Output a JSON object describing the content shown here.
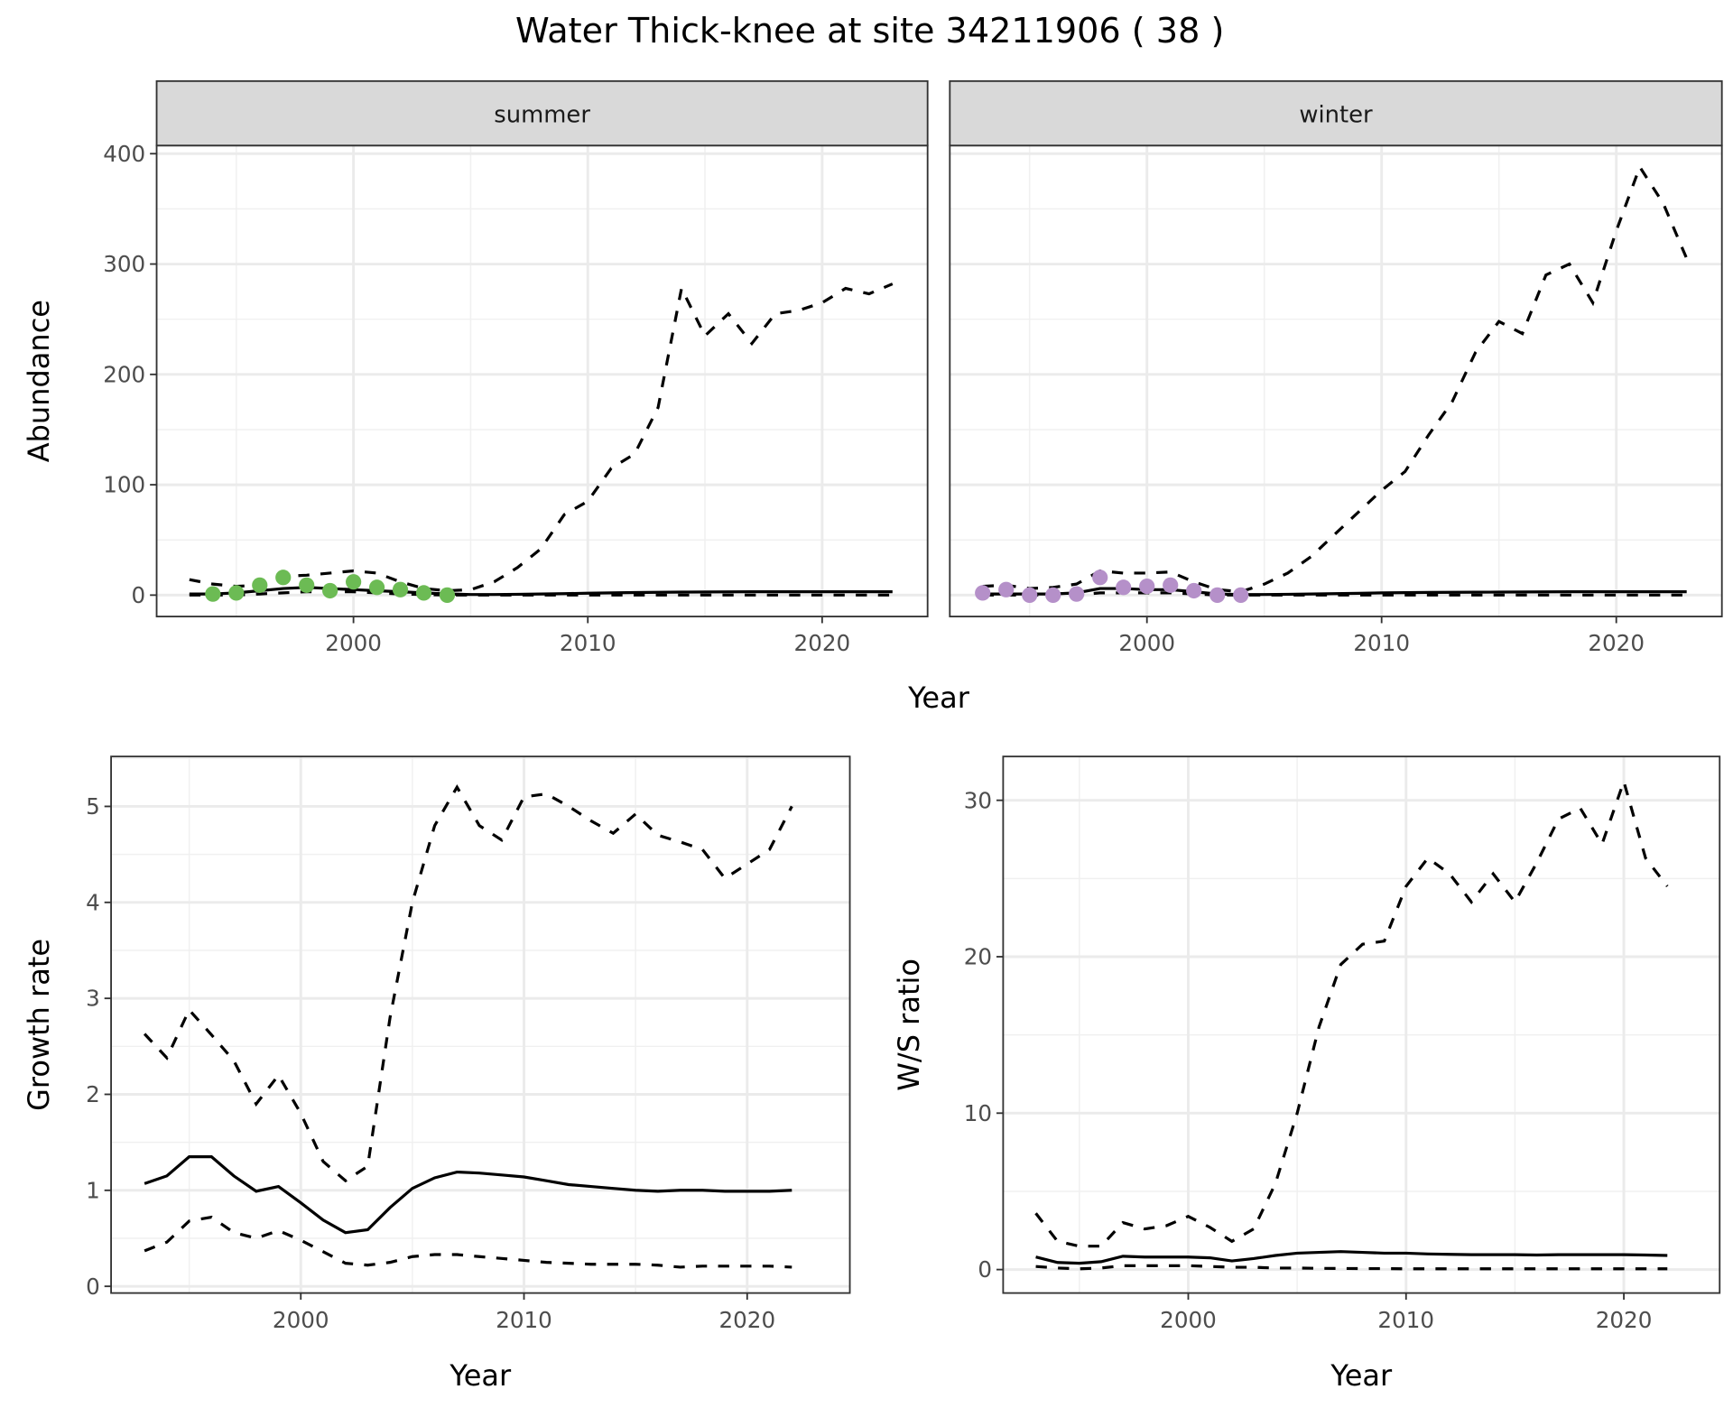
{
  "chart_data": {
    "title": "Water Thick-knee at site 34211906 ( 38 )",
    "colors": {
      "summer_points": "#6cbb54",
      "winter_points": "#b590c9",
      "lines": "#000000",
      "strip_bg": "#d9d9d9"
    },
    "panels": [
      {
        "id": "summer",
        "type": "line",
        "strip": "summer",
        "xlabel": "",
        "ylabel": "Abundance",
        "xlim": [
          1991.6,
          2024.5
        ],
        "ylim": [
          -19.4,
          407.4
        ],
        "xticks": [
          2000,
          2010,
          2020
        ],
        "yticks": [
          0,
          100,
          200,
          300,
          400
        ],
        "x": [
          1993,
          1994,
          1995,
          1996,
          1997,
          1998,
          1999,
          2000,
          2001,
          2002,
          2003,
          2004,
          2005,
          2006,
          2007,
          2008,
          2009,
          2010,
          2011,
          2012,
          2013,
          2014,
          2015,
          2016,
          2017,
          2018,
          2019,
          2020,
          2021,
          2022,
          2023
        ],
        "upper": [
          14,
          10,
          8,
          9,
          17,
          18,
          20,
          22,
          20,
          12,
          6,
          4,
          5,
          12,
          25,
          42,
          73,
          85,
          115,
          128,
          170,
          278,
          235,
          255,
          228,
          255,
          258,
          265,
          278,
          273,
          282
        ],
        "mean": [
          1,
          1,
          2,
          4,
          6,
          7,
          6,
          5,
          4,
          3,
          2,
          1,
          0.5,
          0.5,
          0.7,
          1,
          1.3,
          1.7,
          2,
          2.3,
          2.5,
          2.7,
          2.8,
          2.9,
          3,
          3,
          3,
          3,
          3,
          3,
          3
        ],
        "lower": [
          0,
          0,
          0,
          1,
          2,
          3,
          3,
          3,
          2,
          1,
          0.5,
          0,
          0,
          0,
          0,
          0,
          0,
          0,
          0,
          0,
          0,
          0,
          0,
          0,
          0,
          0,
          0,
          0,
          0,
          0,
          0
        ],
        "points": {
          "x": [
            1994,
            1995,
            1996,
            1997,
            1998,
            1999,
            2000,
            2001,
            2002,
            2003,
            2004
          ],
          "y": [
            1,
            2,
            9,
            16,
            9,
            4,
            12,
            7,
            5,
            2,
            0
          ]
        }
      },
      {
        "id": "winter",
        "type": "line",
        "strip": "winter",
        "xlabel": "",
        "ylabel": "",
        "xlim": [
          1991.6,
          2024.5
        ],
        "ylim": [
          -19.4,
          407.4
        ],
        "xticks": [
          2000,
          2010,
          2020
        ],
        "yticks": [],
        "x": [
          1993,
          1994,
          1995,
          1996,
          1997,
          1998,
          1999,
          2000,
          2001,
          2002,
          2003,
          2004,
          2005,
          2006,
          2007,
          2008,
          2009,
          2010,
          2011,
          2012,
          2013,
          2014,
          2015,
          2016,
          2017,
          2018,
          2019,
          2020,
          2021,
          2022,
          2023
        ],
        "upper": [
          8,
          9,
          6,
          7,
          10,
          22,
          20,
          20,
          21,
          12,
          5,
          3,
          10,
          20,
          35,
          55,
          75,
          95,
          112,
          145,
          175,
          220,
          248,
          237,
          290,
          300,
          265,
          330,
          388,
          355,
          305
        ],
        "mean": [
          1,
          1,
          1,
          1,
          2,
          6,
          6,
          5,
          5,
          3,
          1,
          0.5,
          0.5,
          0.7,
          1,
          1.3,
          1.6,
          2,
          2.2,
          2.4,
          2.5,
          2.6,
          2.7,
          2.8,
          2.9,
          3,
          3,
          3,
          3,
          3,
          3
        ],
        "lower": [
          0,
          0,
          0,
          0,
          0,
          2,
          2,
          2,
          2,
          1,
          0,
          0,
          0,
          0,
          0,
          0,
          0,
          0,
          0,
          0,
          0,
          0,
          0,
          0,
          0,
          0,
          0,
          0,
          0,
          0,
          0
        ],
        "points": {
          "x": [
            1993,
            1994,
            1995,
            1996,
            1997,
            1998,
            1999,
            2000,
            2001,
            2002,
            2003,
            2004
          ],
          "y": [
            2,
            5,
            0,
            0,
            1,
            16,
            7,
            8,
            9,
            4,
            0,
            0
          ]
        }
      },
      {
        "id": "growth",
        "type": "line",
        "xlabel": "Year",
        "ylabel": "Growth rate",
        "xlim": [
          1991.5,
          2024.6
        ],
        "ylim": [
          -0.07,
          5.52
        ],
        "xticks": [
          2000,
          2010,
          2020
        ],
        "yticks": [
          0,
          1,
          2,
          3,
          4,
          5
        ],
        "x": [
          1993,
          1994,
          1995,
          1996,
          1997,
          1998,
          1999,
          2000,
          2001,
          2002,
          2003,
          2004,
          2005,
          2006,
          2007,
          2008,
          2009,
          2010,
          2011,
          2012,
          2013,
          2014,
          2015,
          2016,
          2017,
          2018,
          2019,
          2020,
          2021,
          2022
        ],
        "upper": [
          2.63,
          2.38,
          2.88,
          2.62,
          2.35,
          1.9,
          2.2,
          1.8,
          1.3,
          1.1,
          1.25,
          2.8,
          4.0,
          4.8,
          5.2,
          4.8,
          4.65,
          5.1,
          5.13,
          5.0,
          4.85,
          4.72,
          4.92,
          4.7,
          4.63,
          4.55,
          4.25,
          4.4,
          4.55,
          5.0
        ],
        "mean": [
          1.07,
          1.15,
          1.35,
          1.35,
          1.15,
          0.99,
          1.04,
          0.87,
          0.69,
          0.56,
          0.59,
          0.82,
          1.02,
          1.13,
          1.19,
          1.18,
          1.16,
          1.14,
          1.1,
          1.06,
          1.04,
          1.02,
          1.0,
          0.99,
          1.0,
          1.0,
          0.99,
          0.99,
          0.99,
          1.0
        ],
        "lower": [
          0.37,
          0.46,
          0.68,
          0.72,
          0.56,
          0.5,
          0.58,
          0.48,
          0.36,
          0.24,
          0.22,
          0.25,
          0.31,
          0.33,
          0.33,
          0.31,
          0.29,
          0.27,
          0.25,
          0.24,
          0.23,
          0.23,
          0.23,
          0.22,
          0.2,
          0.21,
          0.21,
          0.21,
          0.21,
          0.2
        ]
      },
      {
        "id": "ws_ratio",
        "type": "line",
        "xlabel": "Year",
        "ylabel": "W/S ratio",
        "xlim": [
          1991.5,
          2024.4
        ],
        "ylim": [
          -1.5,
          32.8
        ],
        "xticks": [
          2000,
          2010,
          2020
        ],
        "yticks": [
          0,
          10,
          20,
          30
        ],
        "x": [
          1993,
          1994,
          1995,
          1996,
          1997,
          1998,
          1999,
          2000,
          2001,
          2002,
          2003,
          2004,
          2005,
          2006,
          2007,
          2008,
          2009,
          2010,
          2011,
          2012,
          2013,
          2014,
          2015,
          2016,
          2017,
          2018,
          2019,
          2020,
          2021,
          2022
        ],
        "upper": [
          3.6,
          1.8,
          1.5,
          1.5,
          3.0,
          2.6,
          2.8,
          3.4,
          2.7,
          1.8,
          2.6,
          5.5,
          10,
          15.5,
          19.5,
          20.8,
          21,
          24.5,
          26.3,
          25.3,
          23.5,
          25.3,
          23.5,
          26,
          28.8,
          29.5,
          27.2,
          31.2,
          26.3,
          24.5
        ],
        "mean": [
          0.8,
          0.45,
          0.4,
          0.5,
          0.85,
          0.8,
          0.8,
          0.8,
          0.75,
          0.55,
          0.7,
          0.9,
          1.05,
          1.1,
          1.15,
          1.1,
          1.05,
          1.05,
          1.0,
          0.97,
          0.95,
          0.95,
          0.95,
          0.93,
          0.95,
          0.95,
          0.95,
          0.95,
          0.93,
          0.9
        ],
        "lower": [
          0.2,
          0.1,
          0.05,
          0.1,
          0.25,
          0.25,
          0.25,
          0.25,
          0.2,
          0.15,
          0.15,
          0.1,
          0.1,
          0.08,
          0.07,
          0.06,
          0.06,
          0.05,
          0.05,
          0.05,
          0.05,
          0.05,
          0.05,
          0.05,
          0.05,
          0.05,
          0.05,
          0.05,
          0.05,
          0.05
        ]
      }
    ],
    "shared_top_xlabel": "Year"
  }
}
